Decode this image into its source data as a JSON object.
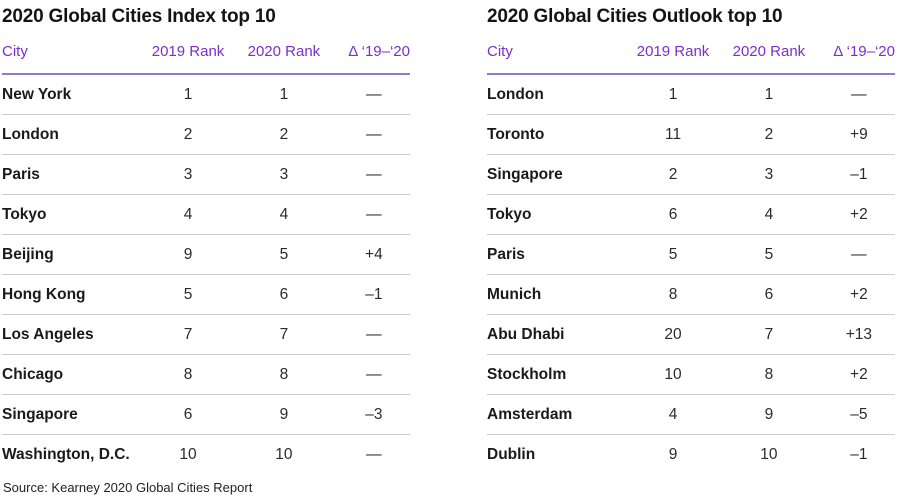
{
  "colors": {
    "accent": "#7b2fc9",
    "header_rule": "#9678cc",
    "divider": "#cccccc",
    "title_text": "#141414",
    "city_text": "#1a1a1a",
    "number_text": "#2b2b2b",
    "source_text": "#222222",
    "background": "#ffffff"
  },
  "source_note": "Source: Kearney 2020 Global Cities Report",
  "chart_data": [
    {
      "type": "table",
      "title": "2020 Global Cities Index top 10",
      "columns": [
        "City",
        "2019 Rank",
        "2020 Rank",
        "Δ ‘19–‘20"
      ],
      "rows": [
        [
          "New York",
          1,
          1,
          "—"
        ],
        [
          "London",
          2,
          2,
          "—"
        ],
        [
          "Paris",
          3,
          3,
          "—"
        ],
        [
          "Tokyo",
          4,
          4,
          "—"
        ],
        [
          "Beijing",
          9,
          5,
          "+4"
        ],
        [
          "Hong Kong",
          5,
          6,
          "–1"
        ],
        [
          "Los Angeles",
          7,
          7,
          "—"
        ],
        [
          "Chicago",
          8,
          8,
          "—"
        ],
        [
          "Singapore",
          6,
          9,
          "–3"
        ],
        [
          "Washington, D.C.",
          10,
          10,
          "—"
        ]
      ]
    },
    {
      "type": "table",
      "title": "2020 Global Cities Outlook top 10",
      "columns": [
        "City",
        "2019 Rank",
        "2020 Rank",
        "Δ ‘19–‘20"
      ],
      "rows": [
        [
          "London",
          1,
          1,
          "—"
        ],
        [
          "Toronto",
          11,
          2,
          "+9"
        ],
        [
          "Singapore",
          2,
          3,
          "–1"
        ],
        [
          "Tokyo",
          6,
          4,
          "+2"
        ],
        [
          "Paris",
          5,
          5,
          "—"
        ],
        [
          "Munich",
          8,
          6,
          "+2"
        ],
        [
          "Abu Dhabi",
          20,
          7,
          "+13"
        ],
        [
          "Stockholm",
          10,
          8,
          "+2"
        ],
        [
          "Amsterdam",
          4,
          9,
          "–5"
        ],
        [
          "Dublin",
          9,
          10,
          "–1"
        ]
      ]
    }
  ]
}
